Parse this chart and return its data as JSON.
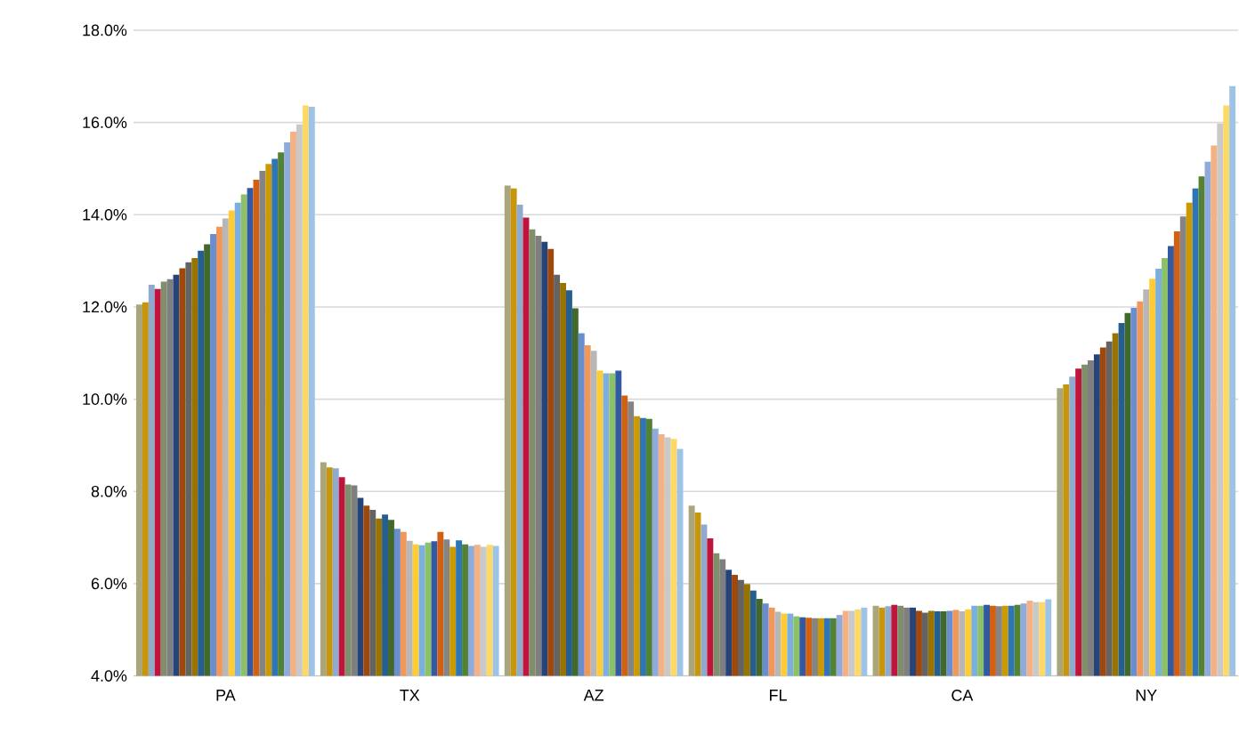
{
  "chart_data": {
    "type": "bar",
    "categories": [
      "PA",
      "TX",
      "AZ",
      "FL",
      "CA",
      "NY"
    ],
    "ylim": [
      4,
      18
    ],
    "yticks": [
      {
        "value": 4,
        "label": "4.0%"
      },
      {
        "value": 6,
        "label": "6.0%"
      },
      {
        "value": 8,
        "label": "8.0%"
      },
      {
        "value": 10,
        "label": "10.0%"
      },
      {
        "value": 12,
        "label": "12.0%"
      },
      {
        "value": 14,
        "label": "14.0%"
      },
      {
        "value": 16,
        "label": "16.0%"
      },
      {
        "value": 18,
        "label": "18.0%"
      }
    ],
    "grid": "y",
    "series": [
      {
        "color": "#a9a57c",
        "values": [
          12.05,
          8.63,
          14.63,
          7.69,
          5.52,
          10.24
        ]
      },
      {
        "color": "#c8960c",
        "values": [
          12.1,
          8.52,
          14.57,
          7.54,
          5.48,
          10.32
        ]
      },
      {
        "color": "#8faacc",
        "values": [
          12.48,
          8.5,
          14.22,
          7.28,
          5.51,
          10.49
        ]
      },
      {
        "color": "#c0143c",
        "values": [
          12.39,
          8.31,
          13.94,
          6.98,
          5.54,
          10.66
        ]
      },
      {
        "color": "#7f8f6b",
        "values": [
          12.55,
          8.15,
          13.68,
          6.66,
          5.52,
          10.75
        ]
      },
      {
        "color": "#7f7f7f",
        "values": [
          12.6,
          8.13,
          13.54,
          6.53,
          5.48,
          10.84
        ]
      },
      {
        "color": "#264478",
        "values": [
          12.7,
          7.86,
          13.41,
          6.3,
          5.48,
          10.97
        ]
      },
      {
        "color": "#9e480e",
        "values": [
          12.84,
          7.69,
          13.26,
          6.19,
          5.41,
          11.12
        ]
      },
      {
        "color": "#636363",
        "values": [
          12.97,
          7.6,
          12.7,
          6.08,
          5.37,
          11.25
        ]
      },
      {
        "color": "#997300",
        "values": [
          13.06,
          7.41,
          12.52,
          5.99,
          5.41,
          11.43
        ]
      },
      {
        "color": "#255e91",
        "values": [
          13.22,
          7.5,
          12.36,
          5.85,
          5.4,
          11.65
        ]
      },
      {
        "color": "#43682b",
        "values": [
          13.36,
          7.38,
          11.97,
          5.67,
          5.4,
          11.87
        ]
      },
      {
        "color": "#698ed0",
        "values": [
          13.58,
          7.19,
          11.43,
          5.57,
          5.41,
          11.98
        ]
      },
      {
        "color": "#f1975a",
        "values": [
          13.74,
          7.12,
          11.17,
          5.48,
          5.43,
          12.12
        ]
      },
      {
        "color": "#b7b7b7",
        "values": [
          13.92,
          6.93,
          11.05,
          5.39,
          5.4,
          12.38
        ]
      },
      {
        "color": "#ffcd33",
        "values": [
          14.09,
          6.85,
          10.62,
          5.35,
          5.44,
          12.61
        ]
      },
      {
        "color": "#7cafdd",
        "values": [
          14.26,
          6.83,
          10.56,
          5.35,
          5.52,
          12.83
        ]
      },
      {
        "color": "#8cc168",
        "values": [
          14.44,
          6.89,
          10.56,
          5.29,
          5.52,
          13.06
        ]
      },
      {
        "color": "#335aa1",
        "values": [
          14.58,
          6.92,
          10.62,
          5.27,
          5.54,
          13.32
        ]
      },
      {
        "color": "#d26012",
        "values": [
          14.76,
          7.12,
          10.08,
          5.26,
          5.52,
          13.64
        ]
      },
      {
        "color": "#848484",
        "values": [
          14.95,
          6.96,
          9.95,
          5.25,
          5.51,
          13.96
        ]
      },
      {
        "color": "#cc9a00",
        "values": [
          15.1,
          6.8,
          9.63,
          5.25,
          5.52,
          14.26
        ]
      },
      {
        "color": "#2e75b6",
        "values": [
          15.21,
          6.94,
          9.59,
          5.25,
          5.52,
          14.57
        ]
      },
      {
        "color": "#548235",
        "values": [
          15.35,
          6.85,
          9.57,
          5.25,
          5.54,
          14.83
        ]
      },
      {
        "color": "#8faadc",
        "values": [
          15.57,
          6.82,
          9.36,
          5.32,
          5.57,
          15.15
        ]
      },
      {
        "color": "#f4b183",
        "values": [
          15.8,
          6.84,
          9.24,
          5.41,
          5.63,
          15.5
        ]
      },
      {
        "color": "#c9c9c9",
        "values": [
          15.96,
          6.8,
          9.17,
          5.41,
          5.6,
          15.98
        ]
      },
      {
        "color": "#ffd966",
        "values": [
          16.37,
          6.84,
          9.14,
          5.44,
          5.6,
          16.37
        ]
      },
      {
        "color": "#9dc3e6",
        "values": [
          16.34,
          6.82,
          8.92,
          5.48,
          5.66,
          16.79
        ]
      }
    ]
  }
}
